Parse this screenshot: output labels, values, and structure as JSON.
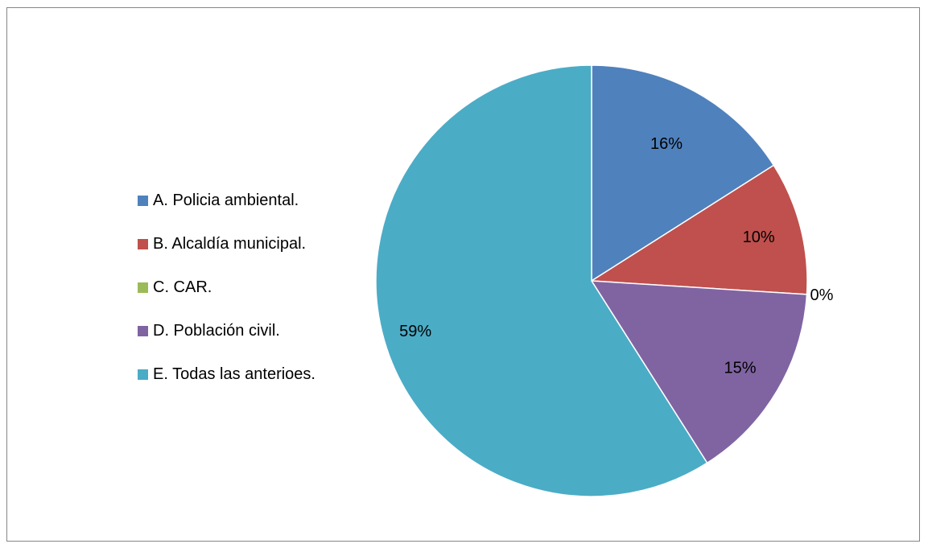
{
  "chart_data": {
    "type": "pie",
    "title": "",
    "legend_position": "left",
    "slices": [
      {
        "label": "A. Policia ambiental.",
        "value": 16,
        "display": "16%",
        "color": "#4F81BD"
      },
      {
        "label": "B. Alcaldía municipal.",
        "value": 10,
        "display": "10%",
        "color": "#C0504D"
      },
      {
        "label": "C. CAR.",
        "value": 0,
        "display": "0%",
        "color": "#9BBB59"
      },
      {
        "label": "D. Población civil.",
        "value": 15,
        "display": "15%",
        "color": "#8064A2"
      },
      {
        "label": "E. Todas las anterioes.",
        "value": 59,
        "display": "59%",
        "color": "#4BACC6"
      }
    ]
  }
}
